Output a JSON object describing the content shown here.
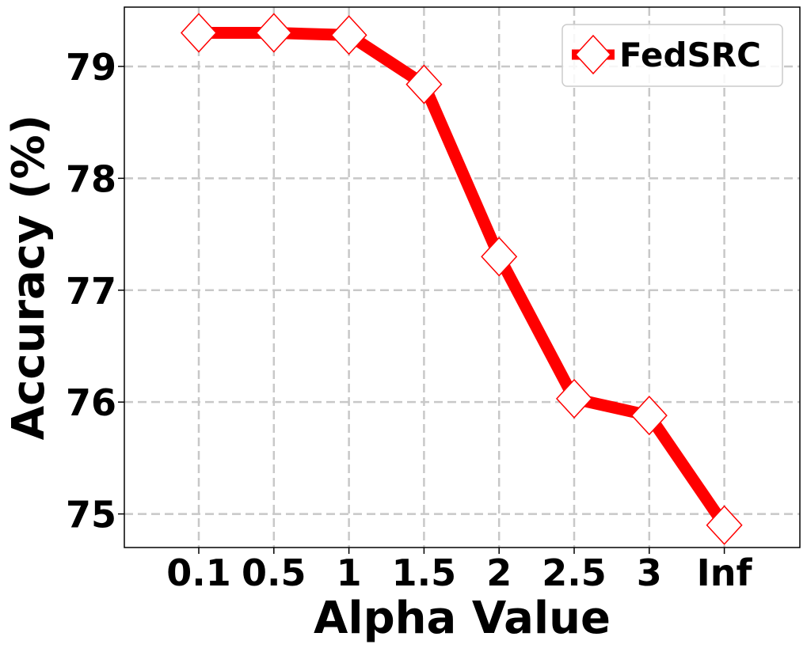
{
  "chart_data": {
    "type": "line",
    "categories": [
      "0.1",
      "0.5",
      "1",
      "1.5",
      "2",
      "2.5",
      "3",
      "Inf"
    ],
    "series": [
      {
        "name": "FedSRC",
        "values": [
          79.3,
          79.3,
          79.28,
          78.84,
          77.3,
          76.03,
          75.88,
          74.9
        ],
        "color": "#ff0000",
        "marker": "diamond",
        "marker_fill": "#ffffff"
      }
    ],
    "xlabel": "Alpha Value",
    "ylabel": "Accuracy (%)",
    "ylim": [
      74.7,
      79.53
    ],
    "yticks": [
      75,
      76,
      77,
      78,
      79
    ],
    "grid": true,
    "legend_position": "top-right"
  }
}
